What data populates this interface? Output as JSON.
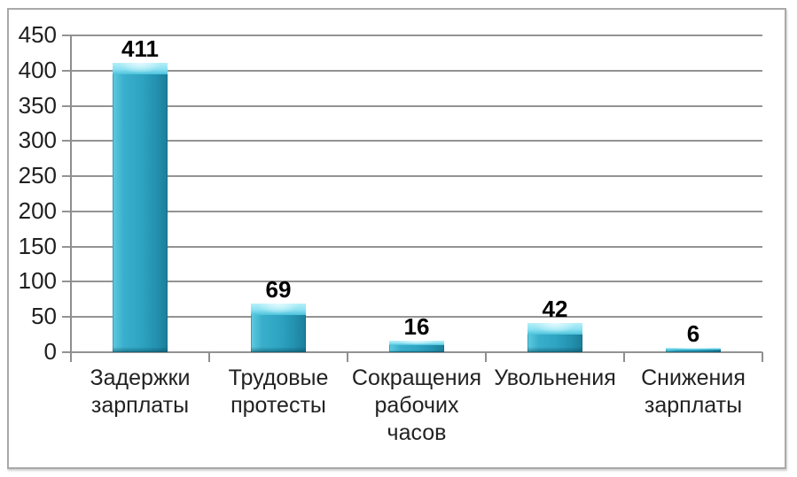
{
  "chart_data": {
    "type": "bar",
    "title": "",
    "xlabel": "",
    "ylabel": "",
    "categories": [
      "Задержки зарплаты",
      "Трудовые протесты",
      "Сокращения рабочих часов",
      "Увольнения",
      "Снижения зарплаты"
    ],
    "values": [
      411,
      69,
      16,
      42,
      6
    ],
    "ylim": [
      0,
      450
    ],
    "yticks": [
      0,
      50,
      100,
      150,
      200,
      250,
      300,
      350,
      400,
      450
    ],
    "grid": true,
    "legend": false,
    "data_labels": true,
    "colors": {
      "bar_mid": "#2EA4C2",
      "bar_light": "#B5EFF9",
      "bar_dark": "#1B7E99",
      "gridline": "#939393",
      "axis": "#8E8E8E",
      "tick_label": "#1F1F1F",
      "value_label": "#000000",
      "category_label": "#222222",
      "frame_border": "#A9A9A9",
      "background": "#FFFFFF"
    }
  }
}
